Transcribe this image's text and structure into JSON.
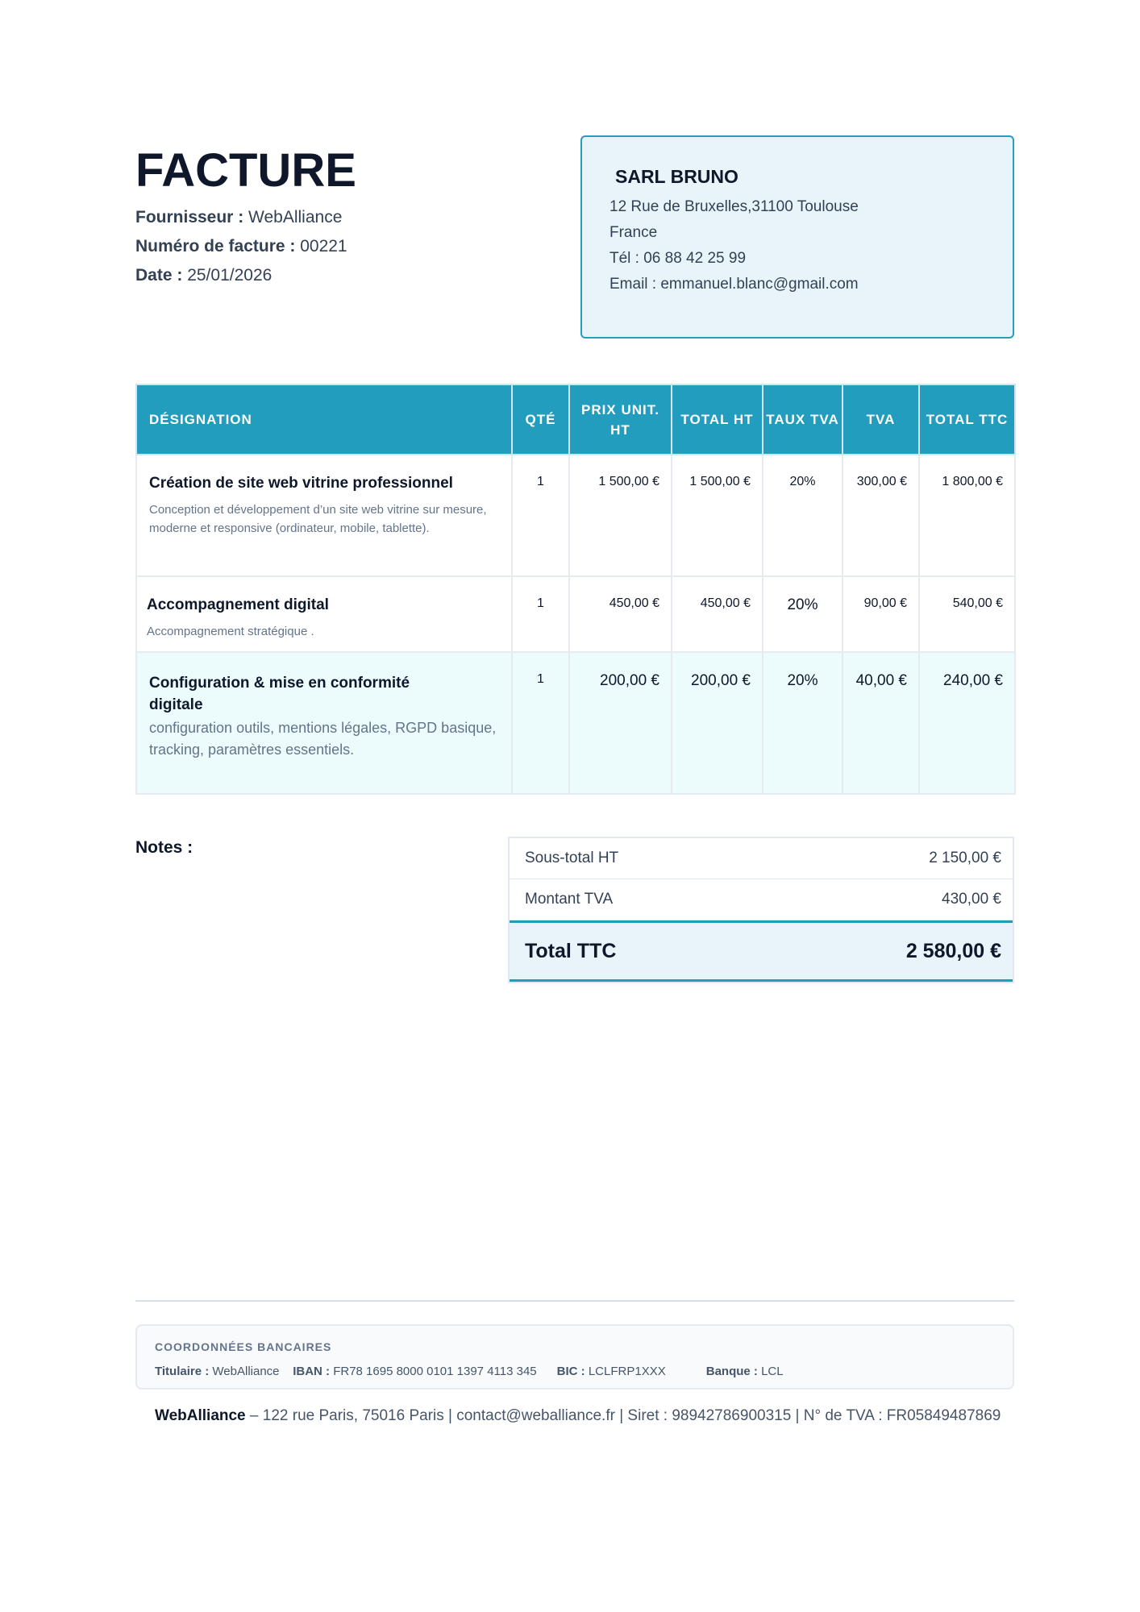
{
  "header": {
    "title": "FACTURE",
    "supplier_label": "Fournisseur :",
    "supplier": "WebAlliance",
    "number_label": "Numéro de facture :",
    "number": "00221",
    "date_label": "Date :",
    "date": "25/01/2026"
  },
  "client": {
    "name": "SARL BRUNO",
    "address": "12 Rue de Bruxelles,31100 Toulouse",
    "country": "France",
    "phone": "Tél : 06 88 42 25 99",
    "email": "Email : emmanuel.blanc@gmail.com"
  },
  "table": {
    "headers": [
      "DÉSIGNATION",
      "QTÉ",
      "PRIX UNIT. HT",
      "TOTAL HT",
      "TAUX TVA",
      "TVA",
      "TOTAL TTC"
    ],
    "rows": [
      {
        "title": "Création de site web vitrine professionnel",
        "desc": "Conception et développement d’un site web vitrine sur mesure, moderne et responsive (ordinateur, mobile, tablette).",
        "qty": "1",
        "unit": "1 500,00  €",
        "total_ht": "1 500,00  €",
        "rate": "20%",
        "tva": "300,00 €",
        "ttc": "1 800,00 €"
      },
      {
        "title": "Accompagnement digital",
        "desc": "Accompagnement stratégique .",
        "qty": "1",
        "unit": "450,00 €",
        "total_ht": "450,00 €",
        "rate": "20%",
        "tva": "90,00 €",
        "ttc": "540,00 €"
      },
      {
        "title": "Configuration & mise en conformité digitale",
        "desc": "configuration outils, mentions légales, RGPD basique, tracking, paramètres essentiels.",
        "qty": "1",
        "unit": "200,00 €",
        "total_ht": "200,00 €",
        "rate": "20%",
        "tva": "40,00 €",
        "ttc": "240,00 €"
      }
    ]
  },
  "notes_label": "Notes :",
  "totals": {
    "subtotal_label": "Sous-total HT",
    "subtotal": "2 150,00 €",
    "tva_label": "Montant TVA",
    "tva": "430,00 €",
    "total_label": "Total TTC",
    "total": "2 580,00 €"
  },
  "bank": {
    "heading": "COORDONNÉES BANCAIRES",
    "holder_label": "Titulaire :",
    "holder": "WebAlliance",
    "iban_label": "IBAN :",
    "iban": "FR78 1695 8000 0101 1397 4113 345",
    "bic_label": "BIC :",
    "bic": "LCLFRP1XXX",
    "bank_label": "Banque :",
    "bank": "LCL"
  },
  "footer": {
    "company": "WebAlliance",
    "details": "– 122 rue Paris, 75016 Paris | contact@weballiance.fr | Siret : 98942786900315 | N° de TVA : FR05849487869"
  },
  "colors": {
    "accent": "#229dbd",
    "client_bg": "#e8f4f9",
    "alt_row": "#ecfcfd"
  }
}
